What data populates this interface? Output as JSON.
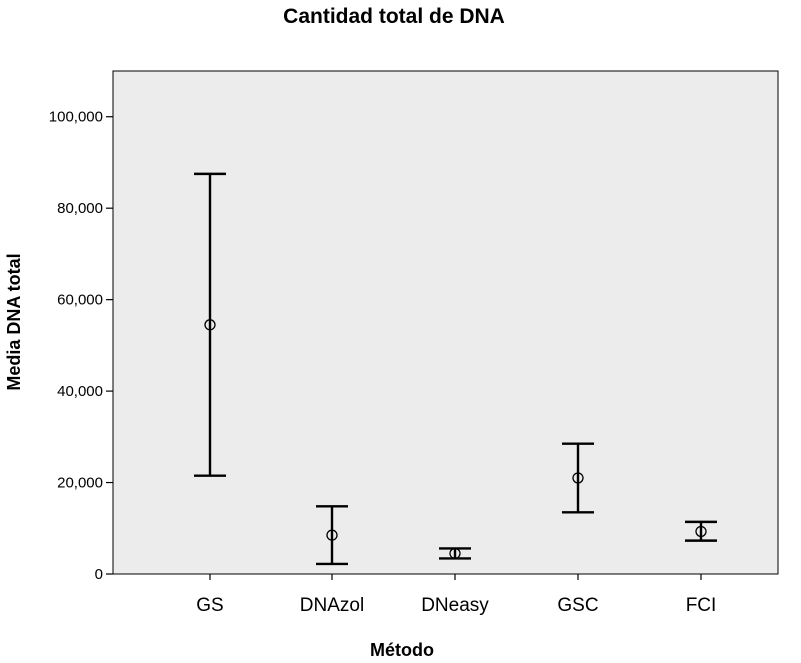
{
  "chart_data": {
    "type": "errorbar",
    "title": "Cantidad total de DNA",
    "xlabel": "Método",
    "ylabel": "Media DNA total",
    "ylim": [
      0,
      110000
    ],
    "yticks": [
      0,
      20000,
      40000,
      60000,
      80000,
      100000
    ],
    "ytick_labels": [
      "0",
      "20,000",
      "40,000",
      "60,000",
      "80,000",
      "100,000"
    ],
    "grid": false,
    "categories": [
      "GS",
      "DNAzol",
      "DNeasy",
      "GSC",
      "FCI"
    ],
    "series": [
      {
        "means": [
          54500,
          8500,
          4500,
          21000,
          9300
        ],
        "lower": [
          21500,
          2200,
          3400,
          13500,
          7300
        ],
        "upper": [
          87500,
          14800,
          5600,
          28500,
          11400
        ]
      }
    ],
    "colors": {
      "plot_background": "#ececec",
      "marks": "#000000"
    }
  }
}
